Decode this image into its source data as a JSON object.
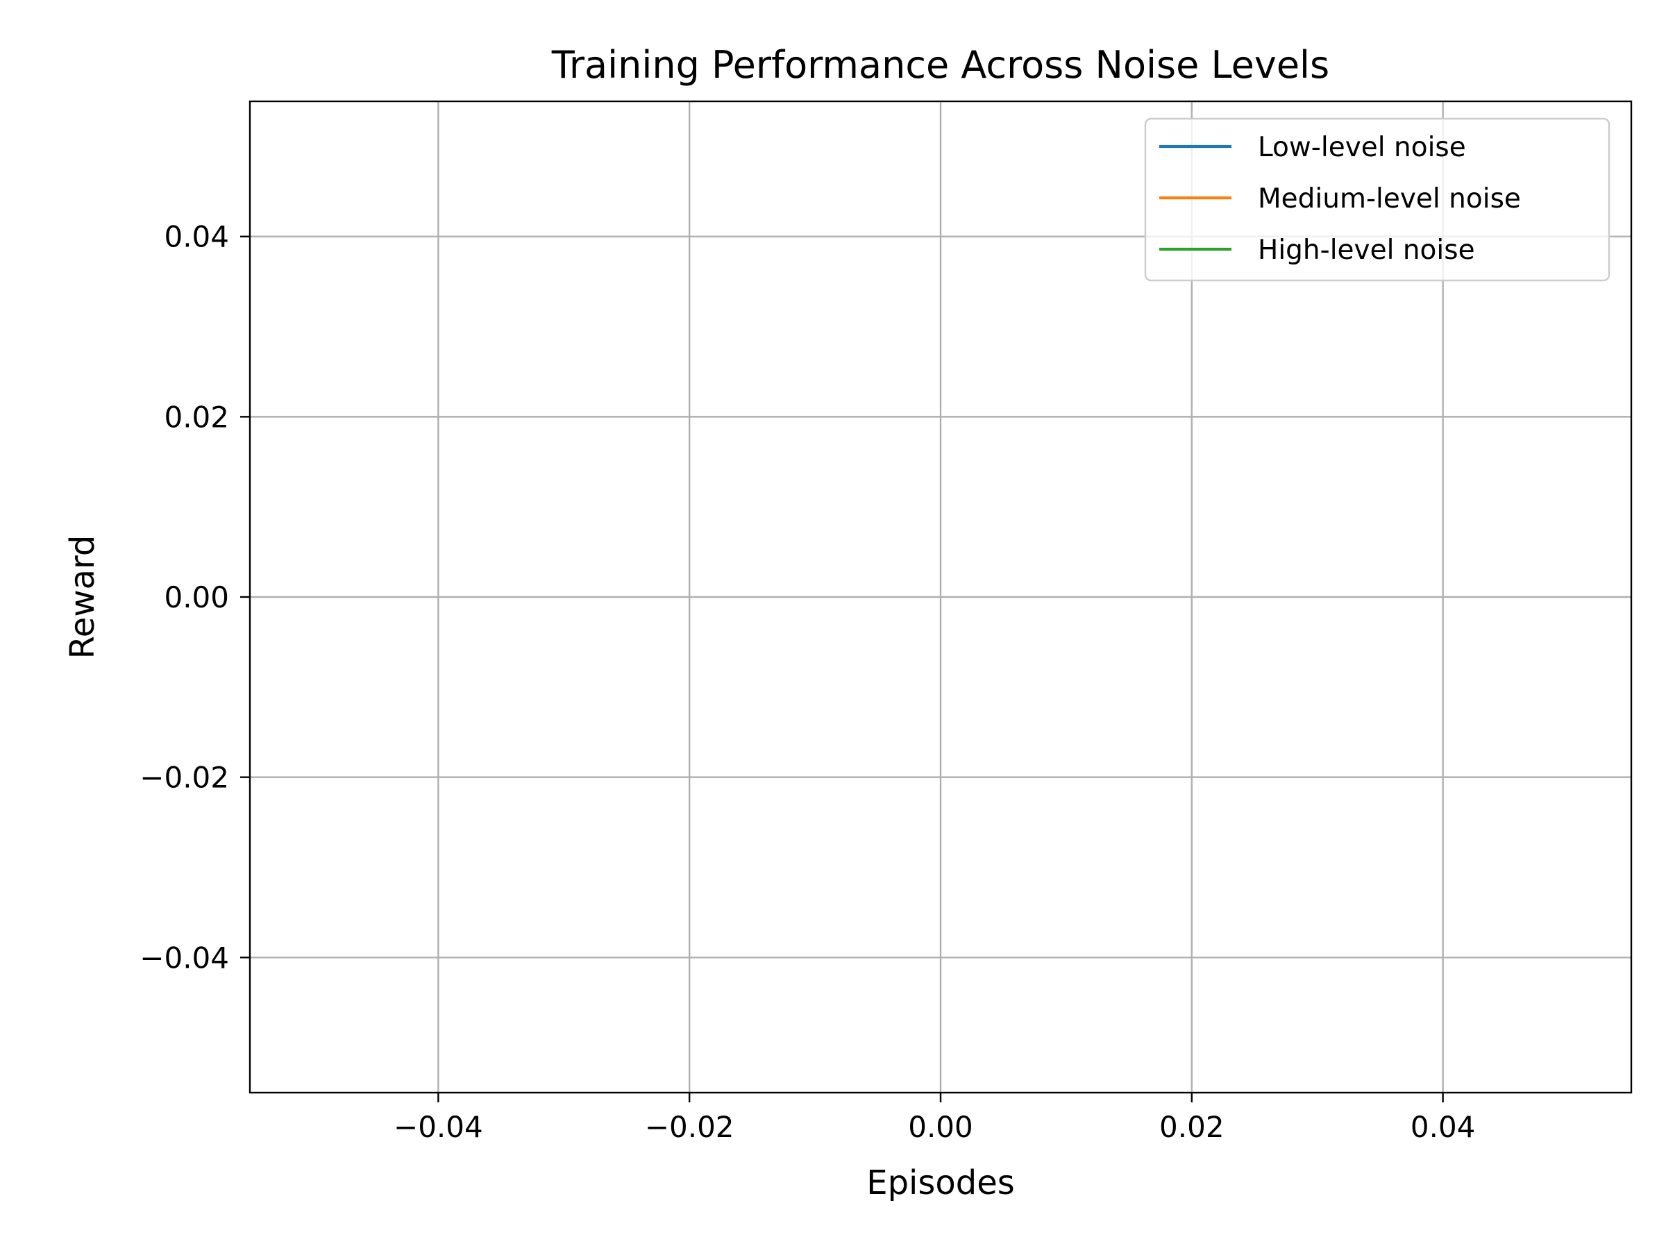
{
  "chart_data": {
    "type": "line",
    "title": "Training Performance Across Noise Levels",
    "xlabel": "Episodes",
    "ylabel": "Reward",
    "xlim": [
      -0.055,
      0.055
    ],
    "ylim": [
      -0.055,
      0.055
    ],
    "x_ticks": [
      -0.04,
      -0.02,
      0.0,
      0.02,
      0.04
    ],
    "x_tick_labels": [
      "−0.04",
      "−0.02",
      "0.00",
      "0.02",
      "0.04"
    ],
    "y_ticks": [
      -0.04,
      -0.02,
      0.0,
      0.02,
      0.04
    ],
    "y_tick_labels": [
      "−0.04",
      "−0.02",
      "0.00",
      "0.02",
      "0.04"
    ],
    "grid": true,
    "legend_position": "top-right",
    "series": [
      {
        "name": "Low-level noise",
        "color": "#1f77b4",
        "x": [],
        "y": []
      },
      {
        "name": "Medium-level noise",
        "color": "#ff7f0e",
        "x": [],
        "y": []
      },
      {
        "name": "High-level noise",
        "color": "#2ca02c",
        "x": [],
        "y": []
      }
    ]
  }
}
